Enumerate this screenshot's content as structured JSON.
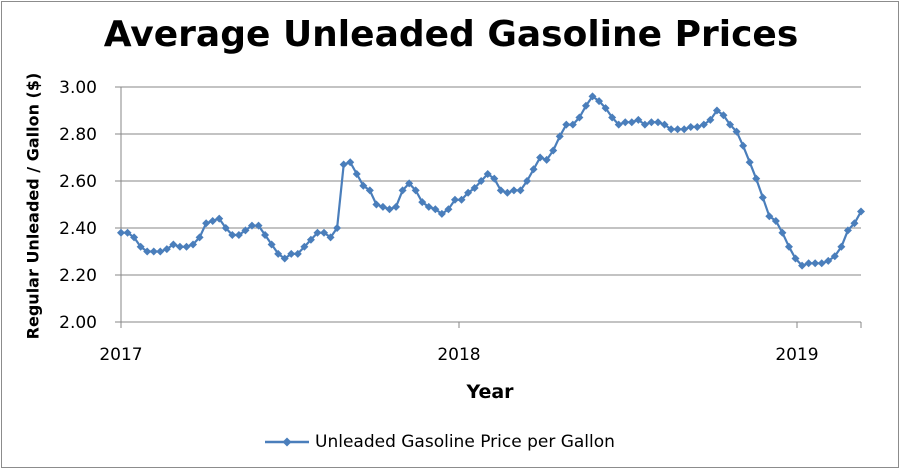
{
  "chart_data": {
    "type": "line",
    "title": "Average Unleaded Gasoline Prices",
    "xlabel": "Year",
    "ylabel": "Regular Unleaded / Gallon ($)",
    "ylim": [
      2.0,
      3.0
    ],
    "y_ticks": [
      "2.00",
      "2.20",
      "2.40",
      "2.60",
      "2.80",
      "3.00"
    ],
    "x_ticks": [
      "2017",
      "2018",
      "2019"
    ],
    "x_range_years": [
      2017,
      2019.19
    ],
    "grid": "horizontal",
    "legend_position": "bottom",
    "color": "#4a7ebb",
    "series": [
      {
        "name": "Unleaded Gasoline Price per Gallon",
        "values": [
          2.38,
          2.38,
          2.36,
          2.32,
          2.3,
          2.3,
          2.3,
          2.31,
          2.33,
          2.32,
          2.32,
          2.33,
          2.36,
          2.42,
          2.43,
          2.44,
          2.4,
          2.37,
          2.37,
          2.39,
          2.41,
          2.41,
          2.37,
          2.33,
          2.29,
          2.27,
          2.29,
          2.29,
          2.32,
          2.35,
          2.38,
          2.38,
          2.36,
          2.4,
          2.67,
          2.68,
          2.63,
          2.58,
          2.56,
          2.5,
          2.49,
          2.48,
          2.49,
          2.56,
          2.59,
          2.56,
          2.51,
          2.49,
          2.48,
          2.46,
          2.48,
          2.52,
          2.52,
          2.55,
          2.57,
          2.6,
          2.63,
          2.61,
          2.56,
          2.55,
          2.56,
          2.56,
          2.6,
          2.65,
          2.7,
          2.69,
          2.73,
          2.79,
          2.84,
          2.84,
          2.87,
          2.92,
          2.96,
          2.94,
          2.91,
          2.87,
          2.84,
          2.85,
          2.85,
          2.86,
          2.84,
          2.85,
          2.85,
          2.84,
          2.82,
          2.82,
          2.82,
          2.83,
          2.83,
          2.84,
          2.86,
          2.9,
          2.88,
          2.84,
          2.81,
          2.75,
          2.68,
          2.61,
          2.53,
          2.45,
          2.43,
          2.38,
          2.32,
          2.27,
          2.24,
          2.25,
          2.25,
          2.25,
          2.26,
          2.28,
          2.32,
          2.39,
          2.42,
          2.47
        ]
      }
    ]
  }
}
